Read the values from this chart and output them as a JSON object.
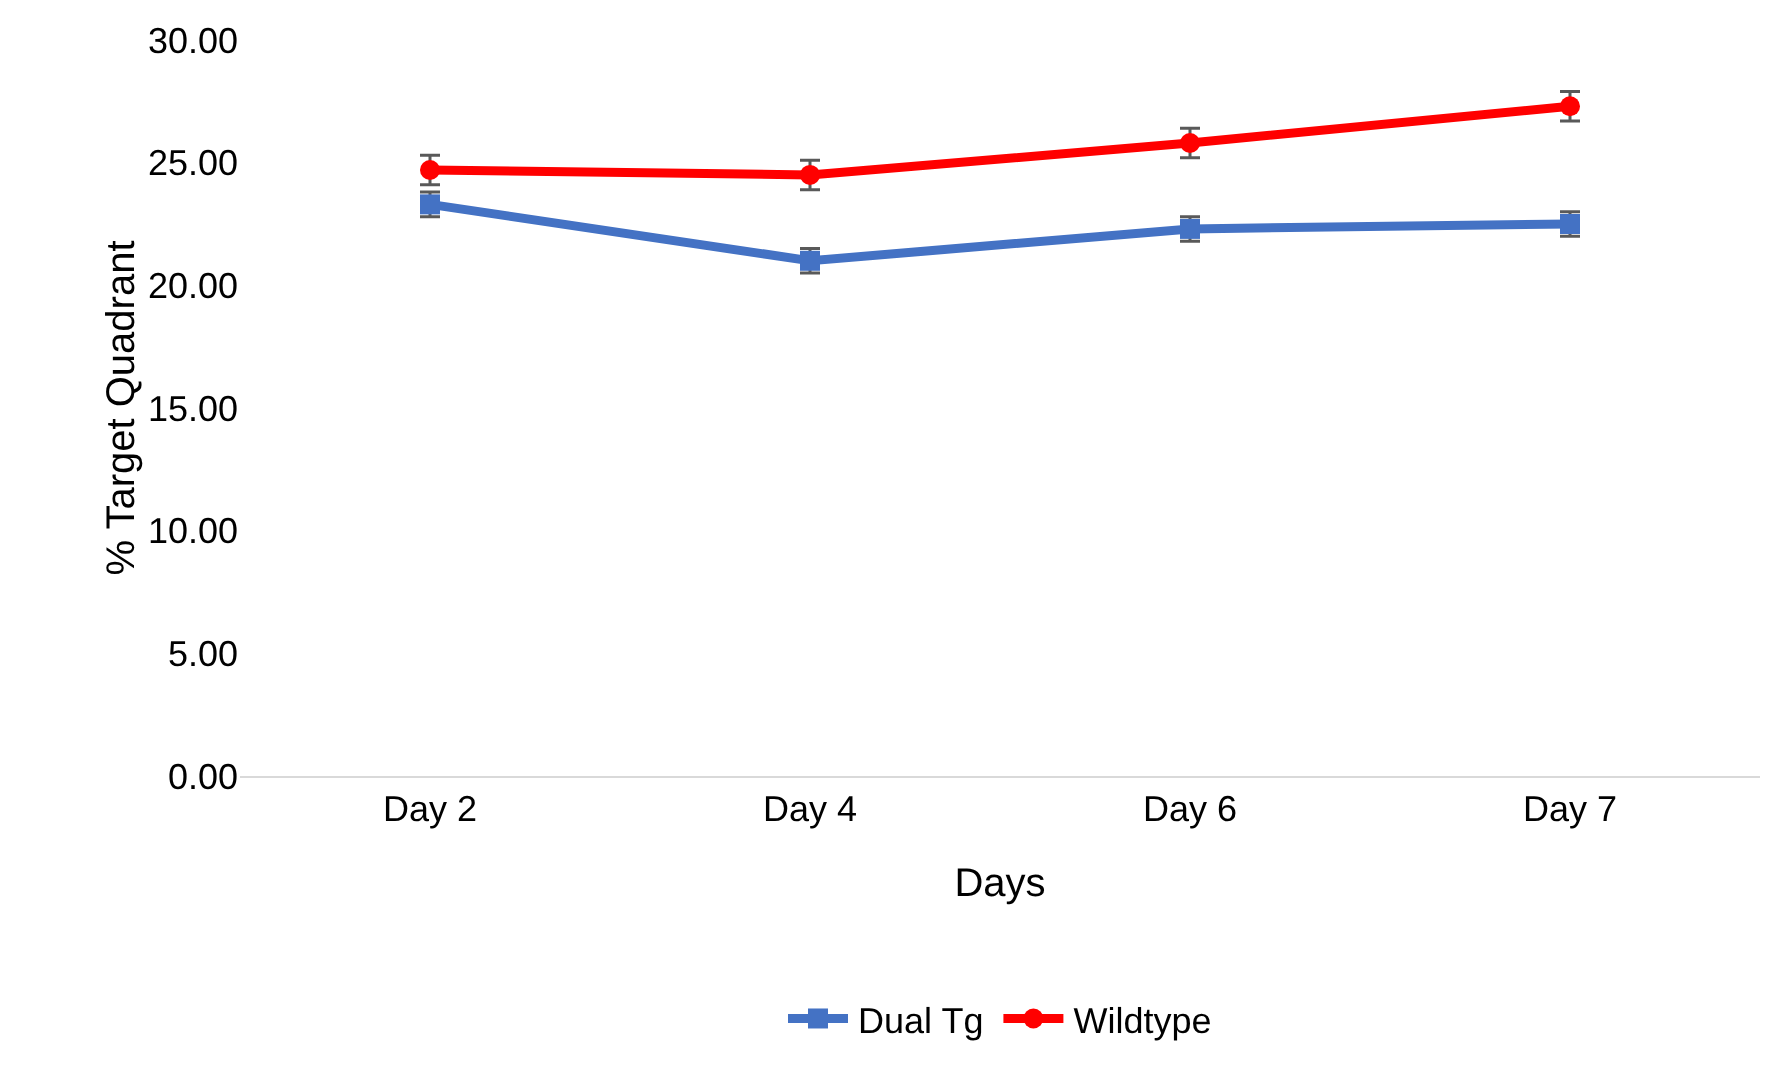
{
  "chart_data": {
    "type": "line",
    "xlabel": "Days",
    "ylabel": "% Target Quadrant",
    "categories": [
      "Day 2",
      "Day 4",
      "Day 6",
      "Day 7"
    ],
    "series": [
      {
        "name": "Dual Tg",
        "color": "#4472c4",
        "marker": "square",
        "values": [
          23.3,
          21.0,
          22.3,
          22.5
        ],
        "errors": [
          0.5,
          0.5,
          0.5,
          0.5
        ]
      },
      {
        "name": "Wildtype",
        "color": "#ff0000",
        "marker": "circle",
        "values": [
          24.7,
          24.5,
          25.8,
          27.3
        ],
        "errors": [
          0.6,
          0.6,
          0.6,
          0.6
        ]
      }
    ],
    "ylim": [
      0,
      30
    ],
    "yticks": [
      {
        "value": 0,
        "label": "0.00"
      },
      {
        "value": 5,
        "label": "5.00"
      },
      {
        "value": 10,
        "label": "10.00"
      },
      {
        "value": 15,
        "label": "15.00"
      },
      {
        "value": 20,
        "label": "20.00"
      },
      {
        "value": 25,
        "label": "25.00"
      },
      {
        "value": 30,
        "label": "30.00"
      }
    ],
    "grid": false,
    "legend": "bottom"
  }
}
